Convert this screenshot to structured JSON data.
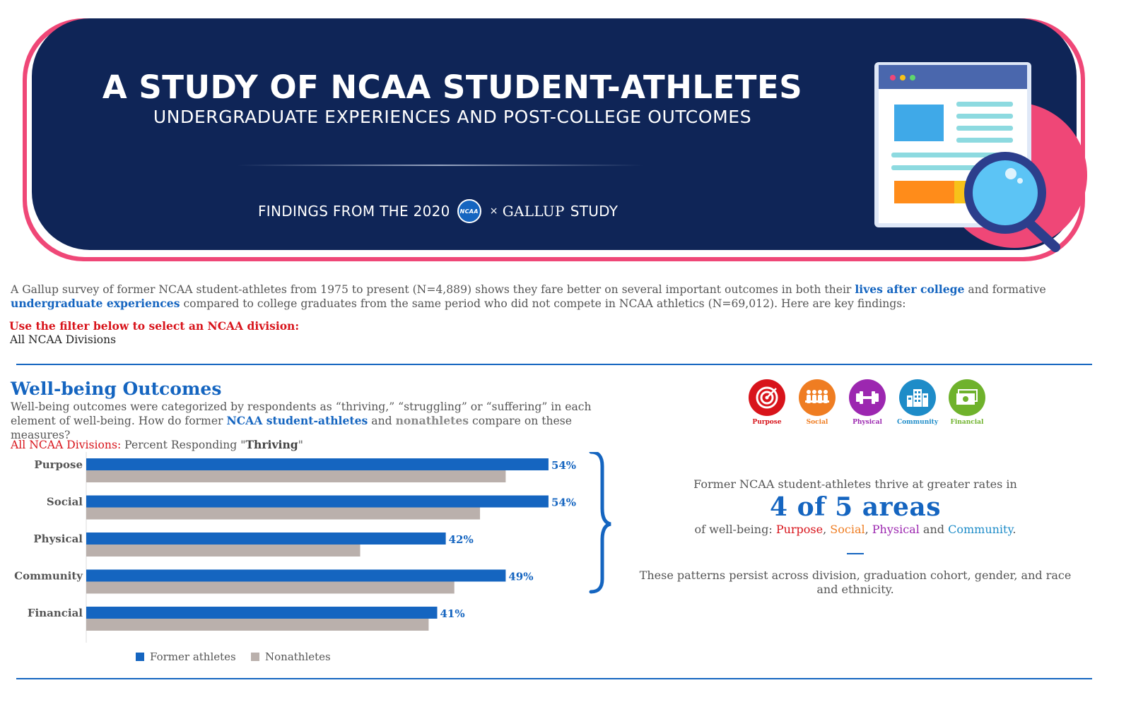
{
  "banner": {
    "title": "A STUDY OF NCAA STUDENT-ATHLETES",
    "subtitle": "UNDERGRADUATE EXPERIENCES AND POST-COLLEGE OUTCOMES",
    "findings_prefix": "FINDINGS FROM THE 2020",
    "ncaa_logo_text": "NCAA",
    "findings_x": "×",
    "gallup": "GALLUP",
    "findings_suffix": "STUDY"
  },
  "intro": {
    "part1": "A Gallup survey of former NCAA student-athletes from 1975 to present (N=4,889) shows they fare better on several important outcomes in both their ",
    "highlight1": "lives after college",
    "part2": " and formative ",
    "highlight2": "undergraduate experiences",
    "part3": " compared to college graduates from the same period who did not compete in NCAA athletics (N=69,012). Here are key findings:"
  },
  "filter": {
    "prompt": "Use the filter below to select an NCAA division:",
    "value": "All NCAA Divisions"
  },
  "wellbeing": {
    "title": "Well-being Outcomes",
    "desc_part1": "Well-being outcomes were categorized by respondents as “thriving,” “struggling” or “suffering” in each element of well-being. How do former ",
    "desc_highlight_athletes": "NCAA student-athletes",
    "desc_part2": " and ",
    "desc_highlight_non": "nonathletes",
    "desc_part3": " compare on these measures?",
    "chart_title_division": "All NCAA Divisions:",
    "chart_title_middle": " Percent Responding \"",
    "chart_title_bold": "Thriving",
    "chart_title_end": "\""
  },
  "chart_data": {
    "type": "bar",
    "orientation": "horizontal",
    "title": "All NCAA Divisions: Percent Responding \"Thriving\"",
    "categories": [
      "Purpose",
      "Social",
      "Physical",
      "Community",
      "Financial"
    ],
    "series": [
      {
        "name": "Former athletes",
        "color": "#1565c0",
        "values": [
          54,
          54,
          42,
          49,
          41
        ],
        "labels": [
          "54%",
          "54%",
          "42%",
          "49%",
          "41%"
        ]
      },
      {
        "name": "Nonathletes",
        "color": "#bab0ac",
        "values": [
          49,
          46,
          32,
          43,
          40
        ]
      }
    ],
    "xlim": [
      0,
      70
    ],
    "xlabel": "",
    "ylabel": "",
    "grid": false,
    "legend_position": "bottom"
  },
  "legend": {
    "athletes": "Former athletes",
    "nonathletes": "Nonathletes"
  },
  "icons": [
    {
      "name": "purpose-icon",
      "label": "Purpose",
      "color": "#d8141b"
    },
    {
      "name": "social-icon",
      "label": "Social",
      "color": "#ef7d22"
    },
    {
      "name": "physical-icon",
      "label": "Physical",
      "color": "#9c27b0"
    },
    {
      "name": "community-icon",
      "label": "Community",
      "color": "#1e8cc8"
    },
    {
      "name": "financial-icon",
      "label": "Financial",
      "color": "#6fb22c"
    }
  ],
  "summary": {
    "lead": "Former NCAA student-athletes thrive at greater rates in",
    "big": "4 of 5 areas",
    "areas_prefix": "of well-being: ",
    "area1": "Purpose",
    "sep1": ", ",
    "area2": "Social",
    "sep2": ", ",
    "area3": "Physical",
    "sep3": " and ",
    "area4": "Community",
    "period": ".",
    "persist": "These patterns persist across division, graduation cohort, gender, and race and ethnicity."
  },
  "colors": {
    "navy": "#0f2557",
    "pink": "#ef4777",
    "blue": "#1565c0",
    "gray_bar": "#bab0ac",
    "red": "#d8141b"
  }
}
